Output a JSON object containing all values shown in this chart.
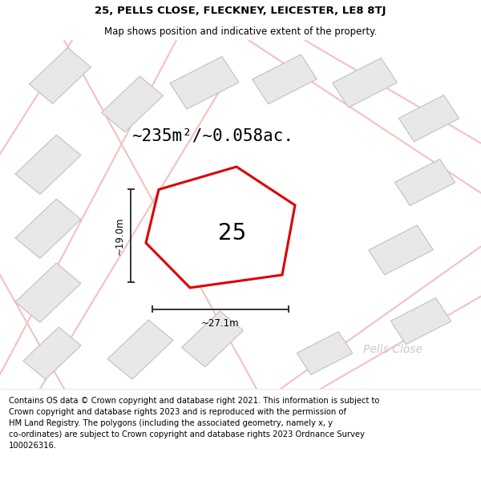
{
  "title_line1": "25, PELLS CLOSE, FLECKNEY, LEICESTER, LE8 8TJ",
  "title_line2": "Map shows position and indicative extent of the property.",
  "area_text": "~235m²/~0.058ac.",
  "plot_number": "25",
  "dim_width": "~27.1m",
  "dim_height": "~19.0m",
  "road_label": "Pells Close",
  "footer_text": "Contains OS data © Crown copyright and database right 2021. This information is subject to\nCrown copyright and database rights 2023 and is reproduced with the permission of\nHM Land Registry. The polygons (including the associated geometry, namely x, y\nco-ordinates) are subject to Crown copyright and database rights 2023 Ordnance Survey\n100026316.",
  "bg_color": "#ffffff",
  "map_bg": "#ffffff",
  "plot_fill": "#ffffff",
  "plot_edge": "#dd0000",
  "neighbor_fill": "#e8e8e8",
  "neighbor_edge": "#c0c0c0",
  "road_line_color": "#f5c0c0",
  "dim_color": "#333333",
  "road_label_color": "#c8c8c8",
  "title_fontsize": 9.5,
  "subtitle_fontsize": 8.5,
  "area_fontsize": 15,
  "plot_num_fontsize": 20,
  "footer_fontsize": 7.2,
  "title_bold": true
}
